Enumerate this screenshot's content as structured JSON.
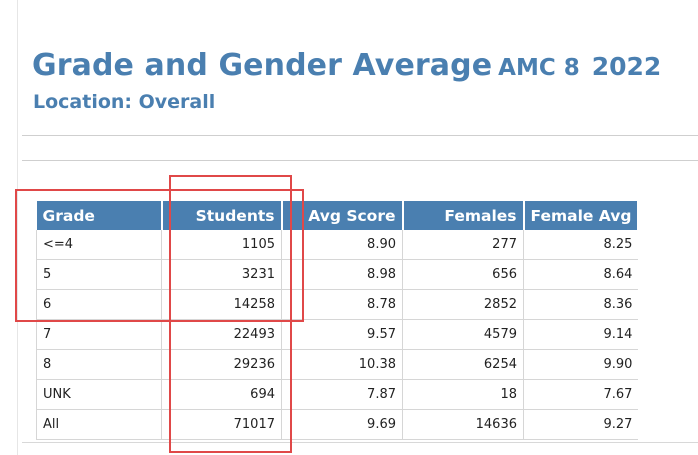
{
  "report": {
    "title": "Grade and Gender Average",
    "contest": "AMC 8",
    "year": "2022",
    "location": "Location: Overall"
  },
  "table": {
    "headers": {
      "grade": "Grade",
      "students": "Students",
      "avg_score": "Avg Score",
      "females": "Females",
      "female_avg": "Female Avg"
    },
    "rows": [
      {
        "grade": "<=4",
        "students": "1105",
        "avg_score": "8.90",
        "females": "277",
        "female_avg": "8.25"
      },
      {
        "grade": "5",
        "students": "3231",
        "avg_score": "8.98",
        "females": "656",
        "female_avg": "8.64"
      },
      {
        "grade": "6",
        "students": "14258",
        "avg_score": "8.78",
        "females": "2852",
        "female_avg": "8.36"
      },
      {
        "grade": "7",
        "students": "22493",
        "avg_score": "9.57",
        "females": "4579",
        "female_avg": "9.14"
      },
      {
        "grade": "8",
        "students": "29236",
        "avg_score": "10.38",
        "females": "6254",
        "female_avg": "9.90"
      },
      {
        "grade": "UNK",
        "students": "694",
        "avg_score": "7.87",
        "females": "18",
        "female_avg": "7.67"
      },
      {
        "grade": "All",
        "students": "71017",
        "avg_score": "9.69",
        "females": "14636",
        "female_avg": "9.27"
      }
    ]
  },
  "annotations": {
    "highlight_color": "#e04848",
    "highlighted_rows": [
      "<=4",
      "5",
      "6"
    ],
    "highlighted_column": "Students"
  },
  "colors": {
    "title": "#4a7fb0",
    "header_bg": "#4a7fb0",
    "header_text": "#ffffff",
    "gridline": "#d6d6d6"
  }
}
